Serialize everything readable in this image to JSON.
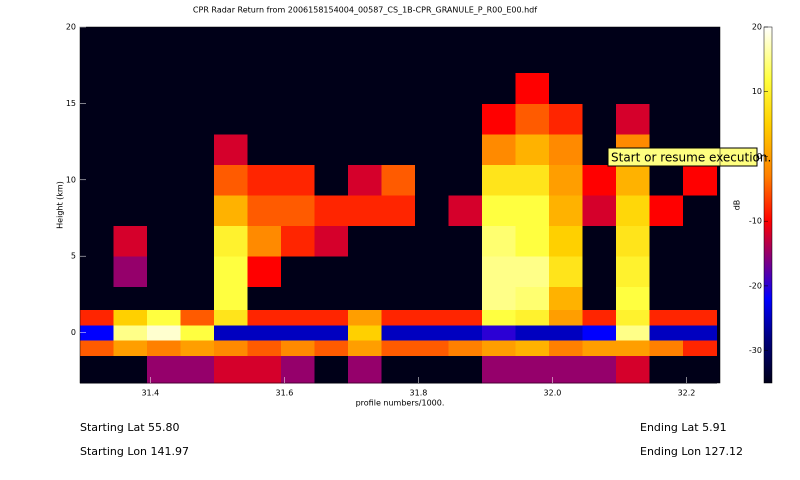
{
  "chart_data": {
    "type": "heatmap",
    "title": "CPR Radar Return from 2006158154004_00587_CS_1B-CPR_GRANULE_P_R00_E00.hdf",
    "x_label": "profile numbers/1000.",
    "y_label": "Height (km)",
    "colorbar_label": "dB",
    "xlim": [
      31.295,
      32.25
    ],
    "ylim": [
      -3.3,
      20
    ],
    "xticks": [
      31.4,
      31.6,
      31.8,
      {
        "value": 32,
        "label": "32.0"
      },
      32.2
    ],
    "yticks": [
      0,
      5,
      10,
      15,
      20
    ],
    "clim": [
      -35,
      20
    ],
    "cticks": [
      -30,
      -20,
      -10,
      0,
      10,
      20
    ],
    "colorscale": [
      [
        -35,
        "#000018"
      ],
      [
        -28,
        "#000080"
      ],
      [
        -22,
        "#0000ff"
      ],
      [
        -16,
        "#800080"
      ],
      [
        -10,
        "#ff0000"
      ],
      [
        -3,
        "#ff8000"
      ],
      [
        5,
        "#ffd000"
      ],
      [
        12,
        "#ffff40"
      ],
      [
        20,
        "#ffffff"
      ]
    ],
    "xbins": [
      31.295,
      31.345,
      31.395,
      31.445,
      31.495,
      31.545,
      31.595,
      31.645,
      31.695,
      31.745,
      31.795,
      31.845,
      31.895,
      31.945,
      31.995,
      32.045,
      32.095,
      32.145,
      32.195,
      32.245
    ],
    "ybins": [
      -3.3,
      -1.5,
      -0.5,
      0.5,
      1.5,
      3,
      5,
      7,
      9,
      11,
      13,
      15,
      17
    ],
    "z": [
      [
        -35,
        -35,
        -15,
        -15,
        -12,
        -12,
        -15,
        -35,
        -15,
        -35,
        -35,
        -35,
        -15,
        -15,
        -15,
        -15,
        -12,
        -35,
        -35
      ],
      [
        -5,
        0,
        -3,
        0,
        -2,
        -5,
        -2,
        -5,
        0,
        -5,
        -5,
        -3,
        0,
        2,
        -3,
        0,
        0,
        -3,
        -8
      ],
      [
        -22,
        15,
        18,
        12,
        -25,
        -25,
        -25,
        -25,
        5,
        -25,
        -25,
        -25,
        -20,
        -25,
        -25,
        -22,
        15,
        -25,
        -25
      ],
      [
        -8,
        5,
        12,
        -5,
        8,
        -8,
        -8,
        -8,
        0,
        -8,
        -8,
        -8,
        12,
        10,
        0,
        -8,
        10,
        -8,
        -8
      ],
      [
        -35,
        -35,
        -35,
        -35,
        12,
        -35,
        -35,
        -35,
        -35,
        -35,
        -35,
        -35,
        15,
        14,
        2,
        -35,
        12,
        -35,
        -35
      ],
      [
        -35,
        -15,
        -35,
        -35,
        12,
        -10,
        -35,
        -35,
        -35,
        -35,
        -35,
        -35,
        15,
        15,
        8,
        -35,
        10,
        -35,
        -35
      ],
      [
        -35,
        -12,
        -35,
        -35,
        10,
        -2,
        -8,
        -12,
        -35,
        -35,
        -35,
        -35,
        14,
        12,
        5,
        -35,
        8,
        -35,
        -35
      ],
      [
        -35,
        -35,
        -35,
        -35,
        2,
        -5,
        -5,
        -8,
        -8,
        -8,
        -35,
        -12,
        12,
        12,
        2,
        -12,
        6,
        -10,
        -35
      ],
      [
        -35,
        -35,
        -35,
        -35,
        -5,
        -8,
        -8,
        -35,
        -12,
        -5,
        -35,
        -35,
        8,
        8,
        0,
        -10,
        2,
        -35,
        -10
      ],
      [
        -35,
        -35,
        -35,
        -35,
        -12,
        -35,
        -35,
        -35,
        -35,
        -35,
        -35,
        -35,
        -2,
        2,
        -2,
        -35,
        -2,
        -35,
        -35
      ],
      [
        -35,
        -35,
        -35,
        -35,
        -35,
        -35,
        -35,
        -35,
        -35,
        -35,
        -35,
        -35,
        -10,
        -5,
        -8,
        -35,
        -12,
        -35,
        -35
      ],
      [
        -35,
        -35,
        -35,
        -35,
        -35,
        -35,
        -35,
        -35,
        -35,
        -35,
        -35,
        -35,
        -35,
        -10,
        -35,
        -35,
        -35,
        -35,
        -35
      ]
    ]
  },
  "info": {
    "starting_lat": "Starting Lat 55.80",
    "starting_lon": "Starting Lon 141.97",
    "ending_lat": "Ending Lat 5.91",
    "ending_lon": "Ending Lon 127.12"
  },
  "tooltip": "Start or resume execution."
}
